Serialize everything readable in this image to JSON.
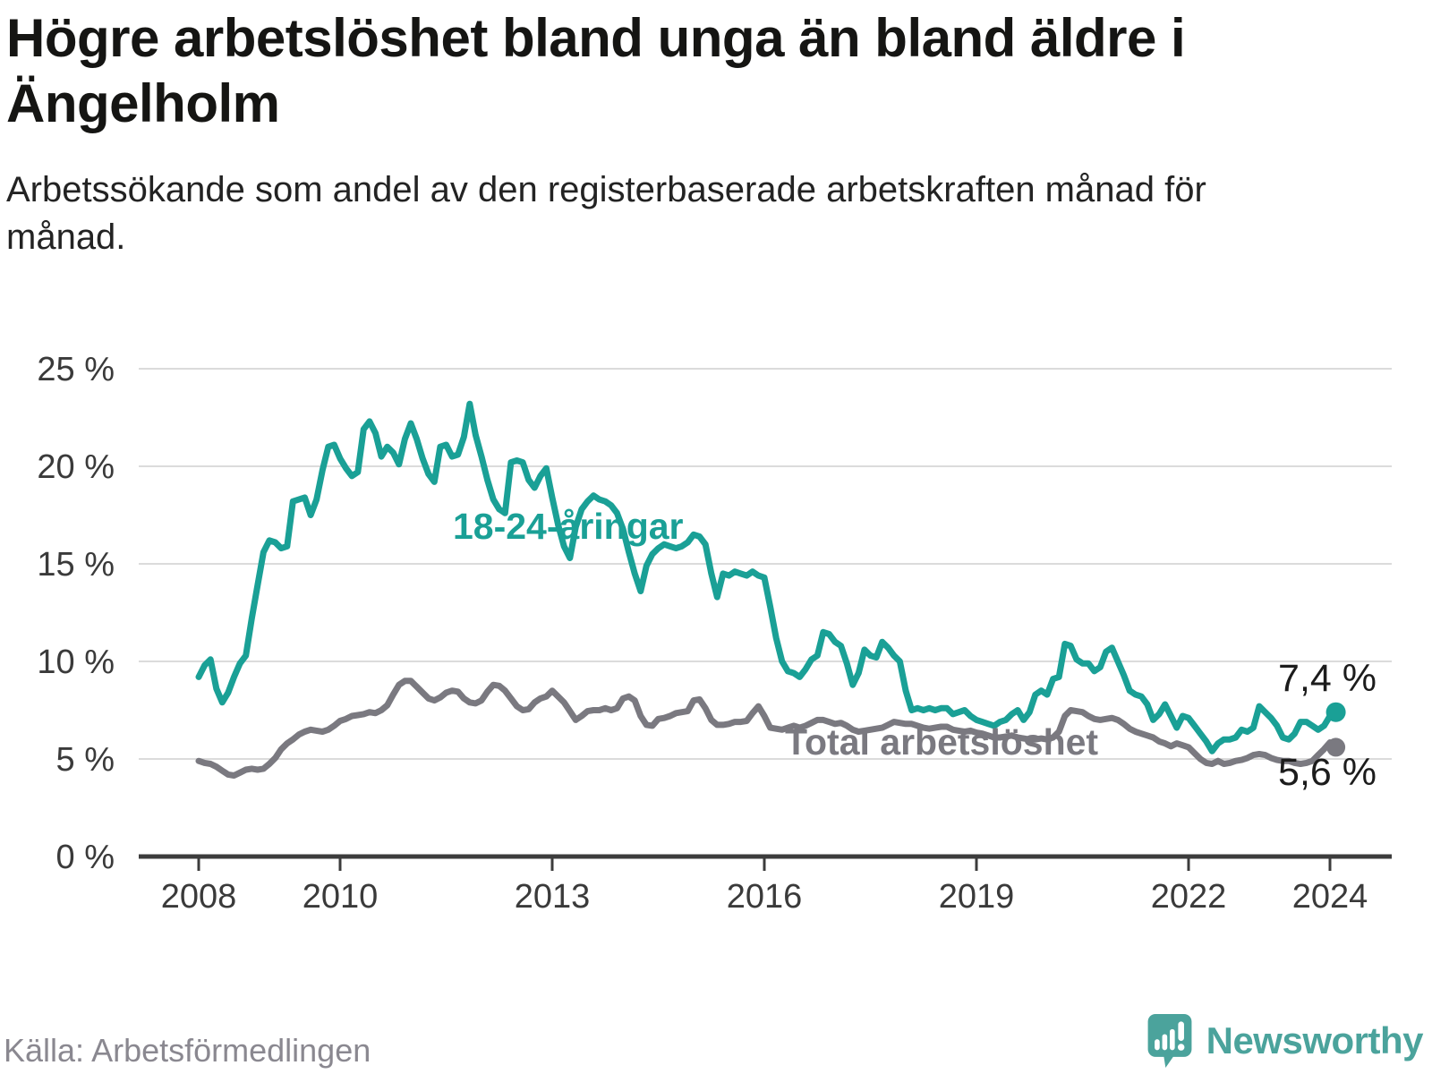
{
  "header": {
    "title": "Högre arbetslöshet bland unga än bland äldre i Ängelholm",
    "subtitle": "Arbetssökande som andel av den registerbaserade arbetskraften månad för månad."
  },
  "footer": {
    "source": "Källa: Arbetsförmedlingen",
    "logo_text": "Newsworthy"
  },
  "colors": {
    "youth_line": "#1AA096",
    "total_line": "#7A7980",
    "logo_teal": "#4BA39C",
    "grid": "#DBDBDB",
    "axis": "#3C3C3C"
  },
  "chart_data": {
    "type": "line",
    "title": "Högre arbetslöshet bland unga än bland äldre i Ängelholm",
    "subtitle": "Arbetssökande som andel av den registerbaserade arbetskraften månad för månad.",
    "x_unit": "month",
    "x_start": "2008-01",
    "x_end": "2024-02",
    "ylim": [
      0,
      25
    ],
    "grid": "horizontal",
    "legend_position": "inline-labels",
    "y_tick_labels": [
      "0 %",
      "5 %",
      "10 %",
      "15 %",
      "20 %",
      "25 %"
    ],
    "x_tick_years": [
      "2008",
      "2010",
      "2013",
      "2016",
      "2019",
      "2022",
      "2024"
    ],
    "series": [
      {
        "name": "18-24-åringar",
        "color": "#1AA096",
        "end_label": "7,4 %",
        "last_value": 7.4,
        "values": [
          9.2,
          9.8,
          10.1,
          8.6,
          7.9,
          8.4,
          9.2,
          9.9,
          10.3,
          12.2,
          13.9,
          15.6,
          16.2,
          16.1,
          15.8,
          15.9,
          18.2,
          18.3,
          18.4,
          17.5,
          18.3,
          19.8,
          21.0,
          21.1,
          20.4,
          19.9,
          19.5,
          19.7,
          21.9,
          22.3,
          21.7,
          20.5,
          21.0,
          20.7,
          20.1,
          21.4,
          22.2,
          21.4,
          20.4,
          19.6,
          19.2,
          21.0,
          21.1,
          20.5,
          20.6,
          21.5,
          23.2,
          21.6,
          20.5,
          19.3,
          18.3,
          17.8,
          17.6,
          20.2,
          20.3,
          20.2,
          19.3,
          18.9,
          19.5,
          19.9,
          18.4,
          17.0,
          15.9,
          15.3,
          16.9,
          17.8,
          18.2,
          18.5,
          18.3,
          18.2,
          18.0,
          17.6,
          16.8,
          15.6,
          14.5,
          13.6,
          14.9,
          15.5,
          15.8,
          16.0,
          15.9,
          15.8,
          15.9,
          16.1,
          16.5,
          16.4,
          16.0,
          14.5,
          13.3,
          14.5,
          14.4,
          14.6,
          14.5,
          14.4,
          14.6,
          14.4,
          14.3,
          12.8,
          11.2,
          10.0,
          9.5,
          9.4,
          9.2,
          9.6,
          10.1,
          10.3,
          11.5,
          11.4,
          11.0,
          10.8,
          9.9,
          8.8,
          9.4,
          10.6,
          10.3,
          10.2,
          11.0,
          10.7,
          10.3,
          10.0,
          8.5,
          7.5,
          7.6,
          7.5,
          7.6,
          7.5,
          7.6,
          7.6,
          7.3,
          7.4,
          7.5,
          7.2,
          7.0,
          6.9,
          6.8,
          6.7,
          6.9,
          7.0,
          7.3,
          7.5,
          7.0,
          7.4,
          8.3,
          8.5,
          8.3,
          9.1,
          9.2,
          10.9,
          10.8,
          10.1,
          9.9,
          9.9,
          9.5,
          9.7,
          10.5,
          10.7,
          10.0,
          9.3,
          8.5,
          8.3,
          8.2,
          7.8,
          7.0,
          7.3,
          7.8,
          7.2,
          6.6,
          7.2,
          7.1,
          6.7,
          6.3,
          5.9,
          5.4,
          5.8,
          6.0,
          6.0,
          6.1,
          6.5,
          6.4,
          6.6,
          7.7,
          7.4,
          7.1,
          6.7,
          6.1,
          6.0,
          6.3,
          6.9,
          6.9,
          6.7,
          6.5,
          6.7,
          7.2,
          7.4
        ]
      },
      {
        "name": "Total arbetslöshet",
        "color": "#7A7980",
        "end_label": "5,6 %",
        "last_value": 5.6,
        "values": [
          4.9,
          4.8,
          4.75,
          4.6,
          4.4,
          4.2,
          4.15,
          4.3,
          4.45,
          4.5,
          4.45,
          4.5,
          4.75,
          5.05,
          5.5,
          5.8,
          6.0,
          6.25,
          6.4,
          6.5,
          6.45,
          6.4,
          6.5,
          6.7,
          6.95,
          7.05,
          7.2,
          7.25,
          7.3,
          7.4,
          7.35,
          7.5,
          7.75,
          8.3,
          8.8,
          9.0,
          9.0,
          8.7,
          8.4,
          8.1,
          8.0,
          8.15,
          8.4,
          8.5,
          8.45,
          8.1,
          7.9,
          7.85,
          8.0,
          8.45,
          8.8,
          8.75,
          8.5,
          8.1,
          7.7,
          7.5,
          7.55,
          7.9,
          8.1,
          8.2,
          8.5,
          8.2,
          7.9,
          7.45,
          7.0,
          7.2,
          7.45,
          7.5,
          7.5,
          7.6,
          7.5,
          7.6,
          8.1,
          8.2,
          8.0,
          7.2,
          6.75,
          6.7,
          7.05,
          7.1,
          7.2,
          7.35,
          7.4,
          7.45,
          8.0,
          8.05,
          7.6,
          7.0,
          6.75,
          6.75,
          6.8,
          6.9,
          6.9,
          6.95,
          7.35,
          7.7,
          7.2,
          6.6,
          6.55,
          6.5,
          6.6,
          6.7,
          6.6,
          6.7,
          6.85,
          7.0,
          7.0,
          6.9,
          6.8,
          6.85,
          6.7,
          6.5,
          6.4,
          6.45,
          6.5,
          6.55,
          6.6,
          6.75,
          6.9,
          6.85,
          6.8,
          6.8,
          6.7,
          6.6,
          6.55,
          6.6,
          6.65,
          6.65,
          6.5,
          6.45,
          6.4,
          6.45,
          6.35,
          6.3,
          6.2,
          6.1,
          6.1,
          6.15,
          6.2,
          6.1,
          6.05,
          6.0,
          6.0,
          6.05,
          6.0,
          6.1,
          6.4,
          7.2,
          7.5,
          7.45,
          7.4,
          7.2,
          7.05,
          7.0,
          7.05,
          7.1,
          7.0,
          6.8,
          6.55,
          6.4,
          6.3,
          6.2,
          6.1,
          5.9,
          5.8,
          5.65,
          5.8,
          5.7,
          5.6,
          5.3,
          5.0,
          4.8,
          4.75,
          4.9,
          4.75,
          4.8,
          4.9,
          4.95,
          5.05,
          5.2,
          5.25,
          5.2,
          5.05,
          4.95,
          4.9,
          4.9,
          4.8,
          4.75,
          4.8,
          4.9,
          5.2,
          5.5,
          5.85,
          5.6
        ]
      }
    ]
  }
}
